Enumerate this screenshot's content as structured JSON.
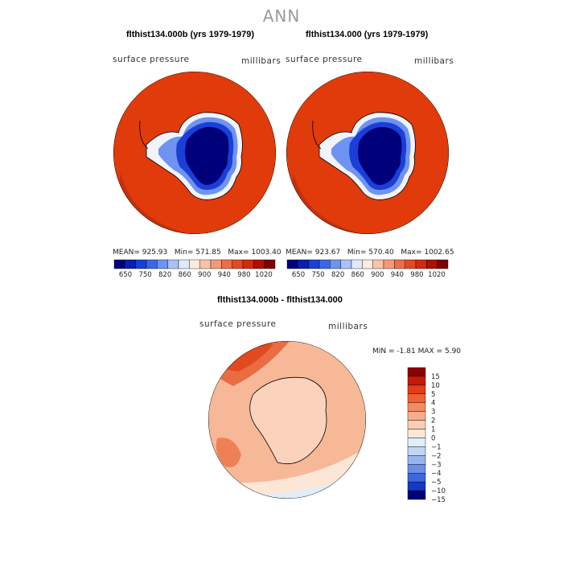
{
  "main_title": "ANN",
  "panels": [
    {
      "title": "flthist134.000b (yrs 1979-1979)",
      "variable": "surface pressure",
      "units": "millibars",
      "stats": {
        "mean_label": "MEAN=",
        "mean": "925.93",
        "min_label": "Min=",
        "min": "571.85",
        "max_label": "Max=",
        "max": "1003.40"
      }
    },
    {
      "title": "flthist134.000 (yrs 1979-1979)",
      "variable": "surface pressure",
      "units": "millibars",
      "stats": {
        "mean_label": "MEAN=",
        "mean": "923.67",
        "min_label": "Min=",
        "min": "570.40",
        "max_label": "Max=",
        "max": "1002.65"
      }
    }
  ],
  "horizontal_colorbar": {
    "tick_labels": [
      "650",
      "750",
      "820",
      "860",
      "900",
      "940",
      "980",
      "1020"
    ],
    "colors": [
      "#00007a",
      "#0a1fb0",
      "#1a3fd8",
      "#3a66e8",
      "#6f93f0",
      "#a9c2f5",
      "#dfe9fb",
      "#fdebe0",
      "#f8c3a8",
      "#f29a78",
      "#ec6e48",
      "#e24a24",
      "#d22a0c",
      "#b01000",
      "#7f0000"
    ]
  },
  "difference": {
    "title": "flthist134.000b - flthist134.000",
    "variable": "surface pressure",
    "units": "millibars",
    "min_label": "MIN =",
    "min": "-1.81",
    "max_label": "MAX =",
    "max": "5.90"
  },
  "vertical_colorbar": {
    "levels": [
      "15",
      "10",
      "5",
      "4",
      "3",
      "2",
      "1",
      "0",
      "−1",
      "−2",
      "−3",
      "−4",
      "−5",
      "−10",
      "−15"
    ],
    "colors": [
      "#8b0000",
      "#c41a05",
      "#e23d14",
      "#ef6135",
      "#f48a60",
      "#f7ad8b",
      "#fbcdb4",
      "#fde6d6",
      "#e3edf9",
      "#c1d5f4",
      "#98b4ee",
      "#6c8ee6",
      "#3e67dd",
      "#1537c4",
      "#00007a"
    ]
  },
  "colors": {
    "ocean_high": "#e13b0b",
    "ocean_shade": "#c3300b",
    "ice_low": "#00007a"
  }
}
